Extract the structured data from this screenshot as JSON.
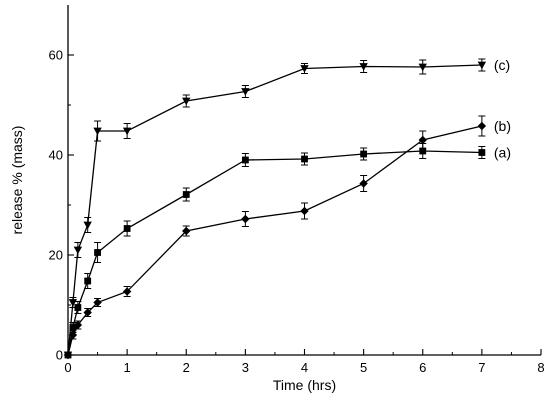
{
  "chart_data": {
    "type": "line",
    "title": "",
    "xlabel": "Time (hrs)",
    "ylabel": "release % (mass)",
    "xlim": [
      0,
      8
    ],
    "ylim": [
      0,
      70
    ],
    "xticks": [
      0,
      1,
      2,
      3,
      4,
      5,
      6,
      7,
      8
    ],
    "yticks": [
      0,
      20,
      40,
      60
    ],
    "grid": false,
    "legend": "none",
    "series": [
      {
        "name": "(c)",
        "marker": "triangle-down",
        "color": "#000000",
        "x": [
          0,
          0.083,
          0.167,
          0.333,
          0.5,
          1,
          2,
          3,
          4,
          5,
          6,
          7
        ],
        "y": [
          0,
          10.5,
          21.0,
          26.0,
          44.8,
          44.8,
          50.8,
          52.7,
          57.3,
          57.7,
          57.6,
          58.0
        ],
        "err": [
          0,
          1.0,
          1.5,
          1.5,
          2.0,
          1.5,
          1.2,
          1.2,
          1.0,
          1.2,
          1.4,
          1.2
        ]
      },
      {
        "name": "(b)",
        "marker": "diamond",
        "color": "#000000",
        "x": [
          0,
          0.083,
          0.167,
          0.333,
          0.5,
          1,
          2,
          3,
          4,
          5,
          6,
          7
        ],
        "y": [
          0,
          4.0,
          6.0,
          8.5,
          10.5,
          12.7,
          24.8,
          27.2,
          28.8,
          34.3,
          43.0,
          45.8
        ],
        "err": [
          0,
          0.8,
          0.8,
          0.8,
          0.8,
          1.0,
          1.0,
          1.5,
          1.6,
          1.6,
          1.8,
          2.0
        ]
      },
      {
        "name": "(a)",
        "marker": "square",
        "color": "#000000",
        "x": [
          0,
          0.083,
          0.167,
          0.333,
          0.5,
          1,
          2,
          3,
          4,
          5,
          6,
          7
        ],
        "y": [
          0,
          5.5,
          9.5,
          14.8,
          20.5,
          25.3,
          32.1,
          39.0,
          39.2,
          40.2,
          40.8,
          40.5
        ],
        "err": [
          0,
          1.0,
          1.2,
          1.5,
          2.0,
          1.5,
          1.3,
          1.3,
          1.2,
          1.2,
          1.5,
          1.2
        ]
      }
    ]
  }
}
